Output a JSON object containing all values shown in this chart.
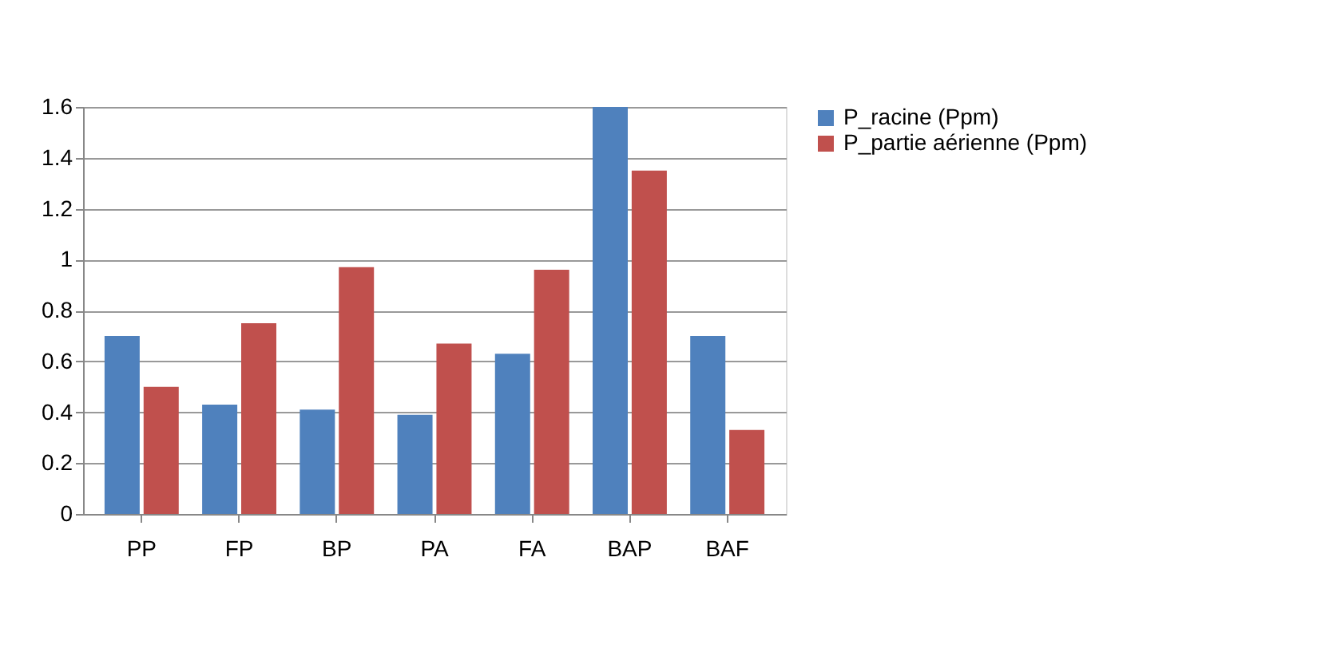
{
  "chart_data": {
    "type": "bar",
    "categories": [
      "PP",
      "FP",
      "BP",
      "PA",
      "FA",
      "BAP",
      "BAF"
    ],
    "series": [
      {
        "name": "P_racine (Ppm)",
        "color": "#4f81bd",
        "values": [
          0.7,
          0.43,
          0.41,
          0.39,
          0.63,
          1.6,
          0.7
        ]
      },
      {
        "name": "P_partie aérienne (Ppm)",
        "color": "#c0504d",
        "values": [
          0.5,
          0.75,
          0.97,
          0.67,
          0.96,
          1.35,
          0.33
        ]
      }
    ],
    "ylim": [
      0,
      1.6
    ],
    "yticks": [
      0,
      0.2,
      0.4,
      0.6,
      0.8,
      1,
      1.2,
      1.4,
      1.6
    ],
    "grid": "y",
    "legend": "right"
  }
}
